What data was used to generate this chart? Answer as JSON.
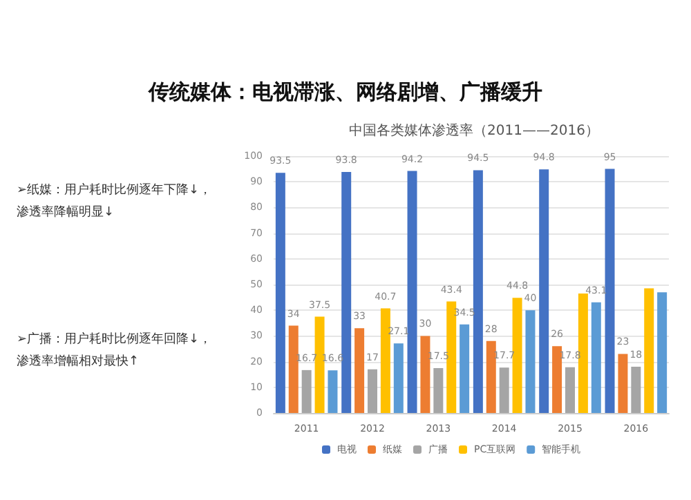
{
  "chart_data": {
    "type": "bar",
    "title": "传统媒体：电视滞涨、网络剧增、广播缓升",
    "subtitle": "中国各类媒体渗透率（2011——2016）",
    "categories": [
      "2011",
      "2012",
      "2013",
      "2014",
      "2015",
      "2016"
    ],
    "series": [
      {
        "name": "电视",
        "color": "#4472c4",
        "values": [
          93.5,
          93.8,
          94.2,
          94.5,
          94.8,
          95
        ],
        "value_labels": [
          "93.5",
          "93.8",
          "94.2",
          "94.5",
          "94.8",
          "95"
        ]
      },
      {
        "name": "纸媒",
        "color": "#ed7d31",
        "values": [
          34,
          33,
          30,
          28,
          26,
          23
        ],
        "value_labels": [
          "34",
          "33",
          "30",
          "28",
          "26",
          "23"
        ]
      },
      {
        "name": "广播",
        "color": "#a5a5a5",
        "values": [
          16.7,
          17,
          17.5,
          17.7,
          17.8,
          18
        ],
        "value_labels": [
          "16.7",
          "17",
          "17.5",
          "17.7",
          "17.8",
          "18"
        ]
      },
      {
        "name": "PC互联网",
        "color": "#ffc000",
        "values": [
          37.5,
          40.7,
          43.4,
          44.8,
          46.5,
          48.5
        ],
        "value_labels": [
          "37.5",
          "40.7",
          "43.4",
          "44.8",
          null,
          null
        ]
      },
      {
        "name": "智能手机",
        "color": "#5b9bd5",
        "values": [
          16.6,
          27.1,
          34.5,
          40,
          43.1,
          47
        ],
        "value_labels": [
          "16.6",
          "27.1",
          "34.5",
          "40",
          "43.1",
          null
        ]
      }
    ],
    "ylim": [
      0,
      100
    ],
    "yticks": [
      0,
      10,
      20,
      30,
      40,
      50,
      60,
      70,
      80,
      90,
      100
    ],
    "grid": "y",
    "legend": "bottom",
    "annotations": [
      "➢纸媒：用户耗时比例逐年下降↓，渗透率降幅明显↓",
      "➢广播：用户耗时比例逐年回降↓，渗透率增幅相对最快↑"
    ]
  }
}
